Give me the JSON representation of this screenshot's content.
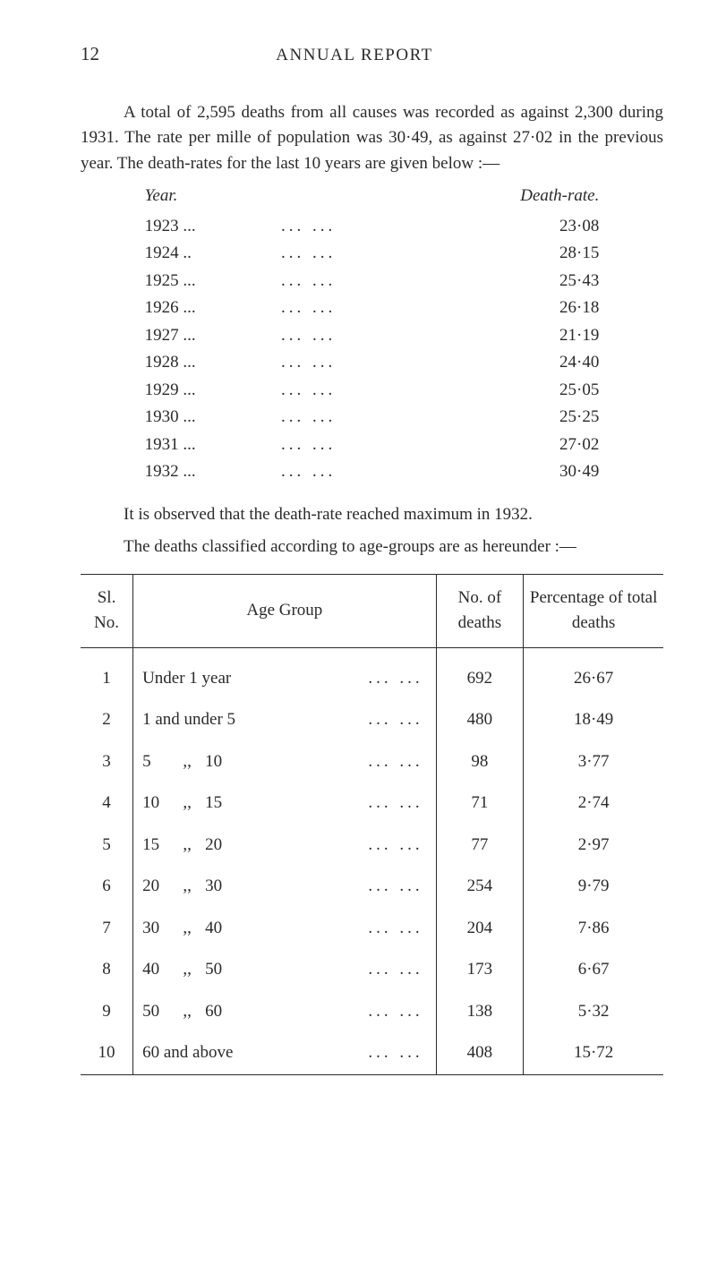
{
  "header": {
    "page_number": "12",
    "running_title": "ANNUAL REPORT"
  },
  "paragraphs": {
    "p1": "A total of 2,595 deaths from all causes was recorded as against 2,300 during 1931. The rate per mille of population was 30·49, as against 27·02 in the previous year. The death-rates for the last 10 years are given below :—",
    "p2": "It is observed that the death-rate reached maximum in 1932.",
    "p3": "The deaths classified according to age-groups are as hereunder :—"
  },
  "year_table": {
    "headers": {
      "year": "Year.",
      "rate": "Death-rate."
    },
    "rows": [
      {
        "year": "1923 ...",
        "rate": "23·08"
      },
      {
        "year": "1924 ..",
        "rate": "28·15"
      },
      {
        "year": "1925 ...",
        "rate": "25·43"
      },
      {
        "year": "1926 ...",
        "rate": "26·18"
      },
      {
        "year": "1927 ...",
        "rate": "21·19"
      },
      {
        "year": "1928 ...",
        "rate": "24·40"
      },
      {
        "year": "1929 ...",
        "rate": "25·05"
      },
      {
        "year": "1930 ...",
        "rate": "25·25"
      },
      {
        "year": "1931 ...",
        "rate": "27·02"
      },
      {
        "year": "1932 ...",
        "rate": "30·49"
      }
    ],
    "dots": "...                        ..."
  },
  "age_table": {
    "headers": {
      "sl": "Sl. No.",
      "group": "Age Group",
      "deaths": "No. of deaths",
      "pct": "Percentage of total deaths"
    },
    "rows": [
      {
        "sl": "1",
        "group_full": "Under 1 year",
        "deaths": "692",
        "pct": "26·67"
      },
      {
        "sl": "2",
        "group_full": "1 and under 5",
        "deaths": "480",
        "pct": "18·49"
      },
      {
        "sl": "3",
        "lead": "5",
        "ditto": ",,",
        "upper": "10",
        "deaths": "98",
        "pct": "3·77"
      },
      {
        "sl": "4",
        "lead": "10",
        "ditto": ",,",
        "upper": "15",
        "deaths": "71",
        "pct": "2·74"
      },
      {
        "sl": "5",
        "lead": "15",
        "ditto": ",,",
        "upper": "20",
        "deaths": "77",
        "pct": "2·97"
      },
      {
        "sl": "6",
        "lead": "20",
        "ditto": ",,",
        "upper": "30",
        "deaths": "254",
        "pct": "9·79"
      },
      {
        "sl": "7",
        "lead": "30",
        "ditto": ",,",
        "upper": "40",
        "deaths": "204",
        "pct": "7·86"
      },
      {
        "sl": "8",
        "lead": "40",
        "ditto": ",,",
        "upper": "50",
        "deaths": "173",
        "pct": "6·67"
      },
      {
        "sl": "9",
        "lead": "50",
        "ditto": ",,",
        "upper": "60",
        "deaths": "138",
        "pct": "5·32"
      },
      {
        "sl": "10",
        "group_full": "60 and above",
        "deaths": "408",
        "pct": "15·72"
      }
    ],
    "row_dots": "...           ..."
  }
}
